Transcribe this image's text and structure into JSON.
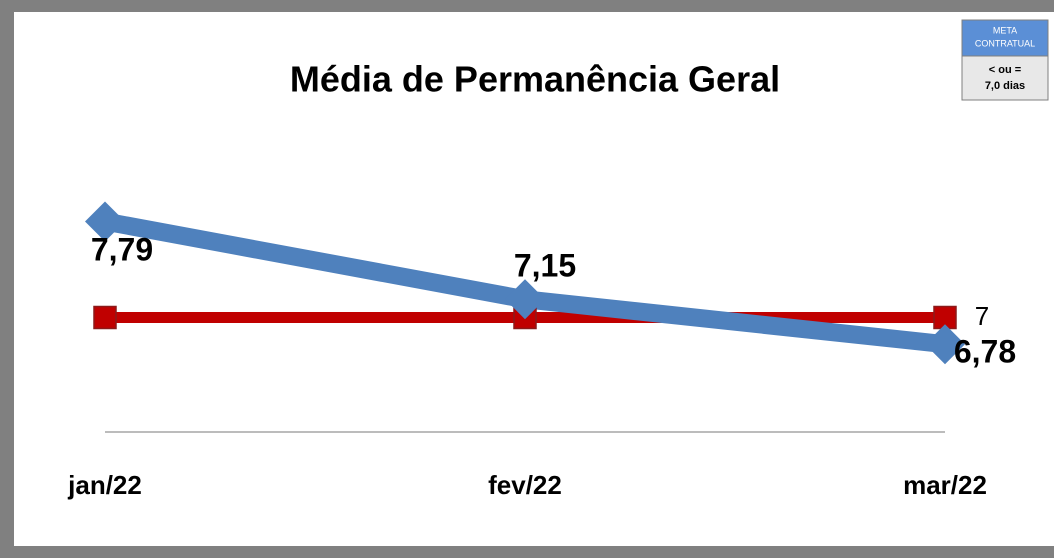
{
  "chart_data": {
    "type": "line",
    "title": "Média de Permanência Geral",
    "categories": [
      "jan/22",
      "fev/22",
      "mar/22"
    ],
    "series": [
      {
        "color": "#4f81bd",
        "marker": "diamond",
        "values": [
          7.79,
          7.15,
          6.78
        ],
        "value_labels": [
          "7,79",
          "7,15",
          "6,78"
        ]
      },
      {
        "color": "#c00000",
        "marker": "square",
        "values": [
          7,
          7,
          7
        ],
        "value_labels": [
          null,
          null,
          "7"
        ]
      }
    ],
    "ylim": [
      6,
      8
    ],
    "annotations": [
      "META",
      "CONTRATUAL",
      "< ou =",
      "7,0 dias"
    ]
  }
}
